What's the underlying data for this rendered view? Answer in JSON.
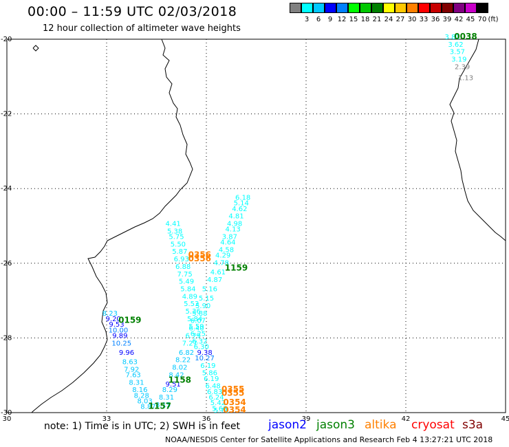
{
  "header": {
    "title": "00:00 – 11:59 UTC 02/03/2018",
    "subtitle": "12 hour collection of altimeter wave heights"
  },
  "scale": {
    "unit": "(ft)",
    "bins": [
      {
        "label": "",
        "color": "#808080"
      },
      {
        "label": "3",
        "color": "#00ffff"
      },
      {
        "label": "6",
        "color": "#00c8ff"
      },
      {
        "label": "9",
        "color": "#0000ff"
      },
      {
        "label": "12",
        "color": "#0080ff"
      },
      {
        "label": "15",
        "color": "#00ff00"
      },
      {
        "label": "18",
        "color": "#00c800"
      },
      {
        "label": "21",
        "color": "#008000"
      },
      {
        "label": "24",
        "color": "#ffff00"
      },
      {
        "label": "27",
        "color": "#ffc800"
      },
      {
        "label": "30",
        "color": "#ff8000"
      },
      {
        "label": "33",
        "color": "#ff0000"
      },
      {
        "label": "36",
        "color": "#c80000"
      },
      {
        "label": "39",
        "color": "#800000"
      },
      {
        "label": "42",
        "color": "#800080"
      },
      {
        "label": "45",
        "color": "#c800c8"
      },
      {
        "label": "70",
        "color": "#000000"
      }
    ]
  },
  "map": {
    "lat_range": [
      -30,
      -20
    ],
    "lon_range": [
      30,
      45
    ],
    "y_labels": [
      "-20",
      "-22",
      "-24",
      "-26",
      "-28",
      "-30"
    ],
    "x_labels": [
      "30",
      "33",
      "36",
      "39",
      "42",
      "45"
    ],
    "time_labels": [
      {
        "text": "0038",
        "lon": 43.8,
        "lat": -20.0,
        "color": "#008000"
      },
      {
        "text": "1159",
        "lon": 36.9,
        "lat": -26.2,
        "color": "#008000"
      },
      {
        "text": "0159",
        "lon": 33.7,
        "lat": -27.6,
        "color": "#008000"
      },
      {
        "text": "1158",
        "lon": 35.2,
        "lat": -29.2,
        "color": "#008000"
      },
      {
        "text": "1157",
        "lon": 34.6,
        "lat": -29.9,
        "color": "#008000"
      },
      {
        "text": "0356",
        "lon": 35.8,
        "lat": -25.85,
        "color": "#ff8000"
      },
      {
        "text": "0356",
        "lon": 35.8,
        "lat": -25.95,
        "color": "#ff8000"
      },
      {
        "text": "0355",
        "lon": 36.8,
        "lat": -29.45,
        "color": "#ff8000"
      },
      {
        "text": "0355",
        "lon": 36.8,
        "lat": -29.55,
        "color": "#ff8000"
      },
      {
        "text": "0354",
        "lon": 36.85,
        "lat": -29.8,
        "color": "#ff8000"
      },
      {
        "text": "0354",
        "lon": 36.85,
        "lat": -30.0,
        "color": "#ff8000"
      }
    ],
    "tracks": [
      {
        "name": "mozambique-track-ne",
        "points": [
          {
            "v": "6.18",
            "lon": 37.1,
            "lat": -24.3,
            "color": "#00ffff"
          },
          {
            "v": "5.14",
            "lon": 37.05,
            "lat": -24.45,
            "color": "#00ffff"
          },
          {
            "v": "4.62",
            "lon": 37.0,
            "lat": -24.6,
            "color": "#00ffff"
          },
          {
            "v": "4.81",
            "lon": 36.9,
            "lat": -24.8,
            "color": "#00ffff"
          },
          {
            "v": "4.98",
            "lon": 36.85,
            "lat": -25.0,
            "color": "#00ffff"
          },
          {
            "v": "4.13",
            "lon": 36.8,
            "lat": -25.15,
            "color": "#00ffff"
          },
          {
            "v": "3.87",
            "lon": 36.7,
            "lat": -25.35,
            "color": "#00ffff"
          },
          {
            "v": "4.64",
            "lon": 36.65,
            "lat": -25.5,
            "color": "#00ffff"
          },
          {
            "v": "4.58",
            "lon": 36.6,
            "lat": -25.7,
            "color": "#00ffff"
          },
          {
            "v": "4.29",
            "lon": 36.5,
            "lat": -25.85,
            "color": "#00ffff"
          },
          {
            "v": "4.78",
            "lon": 36.45,
            "lat": -26.05,
            "color": "#00ffff"
          },
          {
            "v": "4.61",
            "lon": 36.35,
            "lat": -26.3,
            "color": "#00ffff"
          },
          {
            "v": "4.87",
            "lon": 36.25,
            "lat": -26.5,
            "color": "#00ffff"
          },
          {
            "v": "5.16",
            "lon": 36.1,
            "lat": -26.75,
            "color": "#00ffff"
          },
          {
            "v": "5.15",
            "lon": 36.0,
            "lat": -27.0,
            "color": "#00ffff"
          },
          {
            "v": "5.90",
            "lon": 35.9,
            "lat": -27.2,
            "color": "#00ffff"
          },
          {
            "v": "5.88",
            "lon": 35.8,
            "lat": -27.4,
            "color": "#00ffff"
          },
          {
            "v": "6.07",
            "lon": 35.75,
            "lat": -27.6,
            "color": "#00ffff"
          },
          {
            "v": "6.40",
            "lon": 35.7,
            "lat": -27.8,
            "color": "#00ffff"
          },
          {
            "v": "6.79",
            "lon": 35.6,
            "lat": -28.0,
            "color": "#00ffff"
          },
          {
            "v": "7.27",
            "lon": 35.5,
            "lat": -28.2,
            "color": "#00ffff"
          },
          {
            "v": "6.82",
            "lon": 35.4,
            "lat": -28.45,
            "color": "#00c8ff"
          },
          {
            "v": "8.22",
            "lon": 35.3,
            "lat": -28.65,
            "color": "#00c8ff"
          },
          {
            "v": "8.02",
            "lon": 35.2,
            "lat": -28.85,
            "color": "#00c8ff"
          },
          {
            "v": "8.42",
            "lon": 35.1,
            "lat": -29.05,
            "color": "#00c8ff"
          },
          {
            "v": "9.51",
            "lon": 35.0,
            "lat": -29.3,
            "color": "#0000ff"
          },
          {
            "v": "8.29",
            "lon": 34.9,
            "lat": -29.45,
            "color": "#00c8ff"
          },
          {
            "v": "8.31",
            "lon": 34.8,
            "lat": -29.65,
            "color": "#00c8ff"
          },
          {
            "v": "8.15",
            "lon": 34.7,
            "lat": -29.85,
            "color": "#00c8ff"
          }
        ]
      },
      {
        "name": "mozambique-track-nw",
        "points": [
          {
            "v": "4.41",
            "lon": 35.0,
            "lat": -25.0,
            "color": "#00ffff"
          },
          {
            "v": "5.38",
            "lon": 35.05,
            "lat": -25.2,
            "color": "#00ffff"
          },
          {
            "v": "5.75",
            "lon": 35.1,
            "lat": -25.35,
            "color": "#00ffff"
          },
          {
            "v": "5.50",
            "lon": 35.15,
            "lat": -25.55,
            "color": "#00ffff"
          },
          {
            "v": "5.87",
            "lon": 35.2,
            "lat": -25.75,
            "color": "#00ffff"
          },
          {
            "v": "6.93",
            "lon": 35.25,
            "lat": -25.95,
            "color": "#00ffff"
          },
          {
            "v": "6.88",
            "lon": 35.3,
            "lat": -26.15,
            "color": "#00ffff"
          },
          {
            "v": "7.75",
            "lon": 35.35,
            "lat": -26.35,
            "color": "#00ffff"
          },
          {
            "v": "5.49",
            "lon": 35.4,
            "lat": -26.55,
            "color": "#00ffff"
          },
          {
            "v": "5.84",
            "lon": 35.45,
            "lat": -26.75,
            "color": "#00ffff"
          },
          {
            "v": "4.89",
            "lon": 35.5,
            "lat": -26.95,
            "color": "#00ffff"
          },
          {
            "v": "5.53",
            "lon": 35.55,
            "lat": -27.15,
            "color": "#00ffff"
          },
          {
            "v": "5.36",
            "lon": 35.6,
            "lat": -27.35,
            "color": "#00ffff"
          },
          {
            "v": "5.84",
            "lon": 35.65,
            "lat": -27.55,
            "color": "#00ffff"
          },
          {
            "v": "5.59",
            "lon": 35.7,
            "lat": -27.75,
            "color": "#00ffff"
          },
          {
            "v": "6.25",
            "lon": 35.75,
            "lat": -27.95,
            "color": "#00ffff"
          },
          {
            "v": "6.32",
            "lon": 35.8,
            "lat": -28.15,
            "color": "#00ffff"
          },
          {
            "v": "6.30",
            "lon": 35.85,
            "lat": -28.3,
            "color": "#00ffff"
          },
          {
            "v": "9.38",
            "lon": 35.95,
            "lat": -28.45,
            "color": "#0000ff"
          },
          {
            "v": "10.27",
            "lon": 35.95,
            "lat": -28.6,
            "color": "#0080ff"
          },
          {
            "v": "6.19",
            "lon": 36.05,
            "lat": -28.8,
            "color": "#00ffff"
          },
          {
            "v": "5.86",
            "lon": 36.1,
            "lat": -29.0,
            "color": "#00ffff"
          },
          {
            "v": "6.19",
            "lon": 36.15,
            "lat": -29.15,
            "color": "#00ffff"
          },
          {
            "v": "6.48",
            "lon": 36.2,
            "lat": -29.35,
            "color": "#00ffff"
          },
          {
            "v": "6.83",
            "lon": 36.25,
            "lat": -29.5,
            "color": "#00ffff"
          },
          {
            "v": "6.24",
            "lon": 36.3,
            "lat": -29.65,
            "color": "#00ffff"
          },
          {
            "v": "5.42",
            "lon": 36.35,
            "lat": -29.8,
            "color": "#00ffff"
          },
          {
            "v": "5.68",
            "lon": 36.4,
            "lat": -29.95,
            "color": "#00ffff"
          },
          {
            "v": "5.71",
            "lon": 36.45,
            "lat": -30.0,
            "color": "#00ffff"
          }
        ]
      },
      {
        "name": "sw-track",
        "points": [
          {
            "v": "8.23",
            "lon": 33.1,
            "lat": -27.4,
            "color": "#00c8ff"
          },
          {
            "v": "9.20",
            "lon": 33.2,
            "lat": -27.55,
            "color": "#0000ff"
          },
          {
            "v": "9.53",
            "lon": 33.3,
            "lat": -27.7,
            "color": "#0000ff"
          },
          {
            "v": "10.00",
            "lon": 33.35,
            "lat": -27.85,
            "color": "#0080ff"
          },
          {
            "v": "9.89",
            "lon": 33.4,
            "lat": -28.0,
            "color": "#0000ff"
          },
          {
            "v": "10.25",
            "lon": 33.45,
            "lat": -28.2,
            "color": "#0080ff"
          },
          {
            "v": "9.96",
            "lon": 33.6,
            "lat": -28.45,
            "color": "#0000ff"
          },
          {
            "v": "8.63",
            "lon": 33.7,
            "lat": -28.7,
            "color": "#00c8ff"
          },
          {
            "v": "7.92",
            "lon": 33.75,
            "lat": -28.9,
            "color": "#00c8ff"
          },
          {
            "v": "7.63",
            "lon": 33.8,
            "lat": -29.05,
            "color": "#00c8ff"
          },
          {
            "v": "8.31",
            "lon": 33.9,
            "lat": -29.25,
            "color": "#00c8ff"
          },
          {
            "v": "8.16",
            "lon": 34.0,
            "lat": -29.45,
            "color": "#00c8ff"
          },
          {
            "v": "8.28",
            "lon": 34.05,
            "lat": -29.6,
            "color": "#00c8ff"
          },
          {
            "v": "8.03",
            "lon": 34.15,
            "lat": -29.75,
            "color": "#00c8ff"
          },
          {
            "v": "8.87",
            "lon": 34.25,
            "lat": -29.9,
            "color": "#00c8ff"
          }
        ]
      },
      {
        "name": "madagascar-track",
        "points": [
          {
            "v": "3.81",
            "lon": 43.4,
            "lat": -20.0,
            "color": "#00ffff"
          },
          {
            "v": "3.62",
            "lon": 43.5,
            "lat": -20.2,
            "color": "#00ffff"
          },
          {
            "v": "3.57",
            "lon": 43.55,
            "lat": -20.4,
            "color": "#00ffff"
          },
          {
            "v": "3.19",
            "lon": 43.6,
            "lat": -20.6,
            "color": "#00ffff"
          },
          {
            "v": "2.39",
            "lon": 43.7,
            "lat": -20.8,
            "color": "#808080"
          },
          {
            "v": "1.13",
            "lon": 43.8,
            "lat": -21.1,
            "color": "#808080"
          }
        ]
      }
    ]
  },
  "note": "note: 1) Time is in UTC; 2) SWH is in feet",
  "legend": [
    {
      "label": "jason2",
      "color": "#0000ff"
    },
    {
      "label": "jason3",
      "color": "#008000"
    },
    {
      "label": "altika",
      "color": "#ff8000"
    },
    {
      "label": "cryosat",
      "color": "#ff0000"
    },
    {
      "label": "s3a",
      "color": "#800000"
    }
  ],
  "footer": "NOAA/NESDIS Center for Satellite Applications and Research    Feb  4 13:27:21 UTC 2018"
}
